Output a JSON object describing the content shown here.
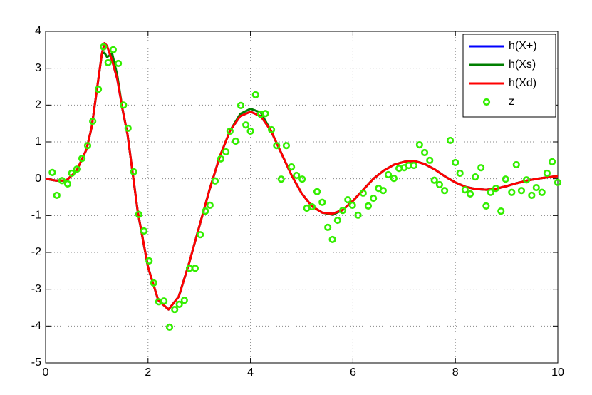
{
  "chart_data": {
    "type": "line",
    "x": [
      0,
      0.2,
      0.4,
      0.6,
      0.8,
      0.9,
      1.0,
      1.1,
      1.15,
      1.2,
      1.3,
      1.4,
      1.5,
      1.6,
      1.8,
      2.0,
      2.2,
      2.4,
      2.6,
      2.8,
      3.0,
      3.2,
      3.4,
      3.6,
      3.8,
      4.0,
      4.2,
      4.4,
      4.6,
      4.8,
      5.0,
      5.2,
      5.4,
      5.6,
      5.8,
      6.0,
      6.2,
      6.4,
      6.6,
      6.8,
      7.0,
      7.2,
      7.4,
      7.6,
      7.8,
      8.0,
      8.2,
      8.4,
      8.6,
      8.8,
      9.0,
      9.2,
      9.4,
      9.6,
      9.8,
      10.0
    ],
    "series": [
      {
        "name": "h(X+)",
        "color": "#0000ff",
        "values": [
          0,
          -0.05,
          -0.05,
          0.2,
          0.8,
          1.4,
          2.4,
          3.4,
          3.68,
          3.6,
          3.2,
          2.7,
          1.9,
          1.2,
          -0.9,
          -2.4,
          -3.3,
          -3.55,
          -3.2,
          -2.3,
          -1.3,
          -0.3,
          0.6,
          1.3,
          1.7,
          1.82,
          1.7,
          1.3,
          0.7,
          0.1,
          -0.4,
          -0.75,
          -0.92,
          -0.95,
          -0.85,
          -0.6,
          -0.3,
          0.0,
          0.22,
          0.38,
          0.46,
          0.48,
          0.4,
          0.25,
          0.06,
          -0.1,
          -0.22,
          -0.28,
          -0.3,
          -0.27,
          -0.2,
          -0.12,
          -0.05,
          0.0,
          0.04,
          0.07
        ]
      },
      {
        "name": "h(Xs)",
        "color": "#007f00",
        "values": [
          0,
          -0.05,
          -0.05,
          0.2,
          0.8,
          1.4,
          2.4,
          3.4,
          3.42,
          3.3,
          3.4,
          2.8,
          1.9,
          1.2,
          -0.9,
          -2.4,
          -3.3,
          -3.55,
          -3.2,
          -2.3,
          -1.3,
          -0.3,
          0.6,
          1.3,
          1.76,
          1.9,
          1.8,
          1.3,
          0.7,
          0.1,
          -0.4,
          -0.75,
          -0.92,
          -0.98,
          -0.85,
          -0.6,
          -0.3,
          0.0,
          0.22,
          0.38,
          0.46,
          0.48,
          0.4,
          0.25,
          0.06,
          -0.1,
          -0.22,
          -0.28,
          -0.3,
          -0.27,
          -0.2,
          -0.12,
          -0.05,
          0.0,
          0.04,
          0.07
        ]
      },
      {
        "name": "h(Xd)",
        "color": "#ff0000",
        "values": [
          0,
          -0.05,
          -0.05,
          0.2,
          0.8,
          1.4,
          2.4,
          3.4,
          3.68,
          3.6,
          3.2,
          2.7,
          1.9,
          1.2,
          -0.9,
          -2.4,
          -3.3,
          -3.55,
          -3.2,
          -2.3,
          -1.3,
          -0.3,
          0.6,
          1.3,
          1.7,
          1.82,
          1.7,
          1.3,
          0.7,
          0.1,
          -0.4,
          -0.75,
          -0.92,
          -0.95,
          -0.85,
          -0.6,
          -0.3,
          0.0,
          0.22,
          0.38,
          0.46,
          0.48,
          0.4,
          0.25,
          0.06,
          -0.1,
          -0.22,
          -0.28,
          -0.3,
          -0.27,
          -0.2,
          -0.12,
          -0.05,
          0.0,
          0.04,
          0.07
        ]
      },
      {
        "name": "z",
        "color": "#33ee00",
        "marker": "o",
        "x": [
          0.13,
          0.22,
          0.32,
          0.43,
          0.51,
          0.61,
          0.71,
          0.82,
          0.92,
          1.03,
          1.13,
          1.22,
          1.32,
          1.42,
          1.52,
          1.61,
          1.72,
          1.82,
          1.92,
          2.02,
          2.11,
          2.21,
          2.31,
          2.42,
          2.52,
          2.61,
          2.71,
          2.81,
          2.92,
          3.02,
          3.12,
          3.21,
          3.31,
          3.42,
          3.52,
          3.6,
          3.71,
          3.81,
          3.91,
          4.0,
          4.1,
          4.2,
          4.29,
          4.41,
          4.51,
          4.6,
          4.7,
          4.8,
          4.9,
          5.01,
          5.1,
          5.2,
          5.3,
          5.4,
          5.51,
          5.6,
          5.7,
          5.8,
          5.9,
          5.99,
          6.1,
          6.2,
          6.3,
          6.4,
          6.5,
          6.59,
          6.69,
          6.8,
          6.9,
          7.0,
          7.09,
          7.19,
          7.3,
          7.4,
          7.5,
          7.59,
          7.69,
          7.79,
          7.9,
          8.0,
          8.09,
          8.19,
          8.29,
          8.39,
          8.5,
          8.6,
          8.69,
          8.79,
          8.89,
          8.98,
          9.1,
          9.19,
          9.29,
          9.39,
          9.49,
          9.58,
          9.69,
          9.79,
          9.89,
          10.0
        ],
        "values": [
          0.17,
          -0.45,
          -0.05,
          -0.14,
          0.15,
          0.26,
          0.55,
          0.9,
          1.56,
          2.43,
          3.58,
          3.15,
          3.5,
          3.13,
          2.0,
          1.37,
          0.19,
          -0.97,
          -1.42,
          -2.23,
          -2.83,
          -3.34,
          -3.32,
          -4.03,
          -3.55,
          -3.41,
          -3.3,
          -2.43,
          -2.43,
          -1.52,
          -0.88,
          -0.72,
          -0.06,
          0.54,
          0.73,
          1.29,
          1.02,
          1.99,
          1.46,
          1.29,
          2.28,
          1.75,
          1.77,
          1.33,
          0.9,
          -0.01,
          0.9,
          0.32,
          0.09,
          -0.01,
          -0.8,
          -0.76,
          -0.35,
          -0.64,
          -1.32,
          -1.65,
          -1.13,
          -0.86,
          -0.57,
          -0.72,
          -0.99,
          -0.39,
          -0.74,
          -0.53,
          -0.26,
          -0.32,
          0.11,
          0.01,
          0.28,
          0.3,
          0.36,
          0.36,
          0.92,
          0.71,
          0.5,
          -0.04,
          -0.16,
          -0.32,
          1.04,
          0.44,
          0.15,
          -0.3,
          -0.41,
          0.05,
          0.3,
          -0.74,
          -0.37,
          -0.26,
          -0.88,
          -0.01,
          -0.37,
          0.38,
          -0.32,
          -0.03,
          -0.45,
          -0.24,
          -0.37,
          0.15,
          0.46,
          -0.1
        ]
      }
    ],
    "xlim": [
      0,
      10
    ],
    "xticks": [
      0,
      2,
      4,
      6,
      8,
      10
    ],
    "ylim": [
      -5,
      4
    ],
    "yticks": [
      -5,
      -4,
      -3,
      -2,
      -1,
      0,
      1,
      2,
      3,
      4
    ],
    "grid": true,
    "legend": "northeast"
  }
}
